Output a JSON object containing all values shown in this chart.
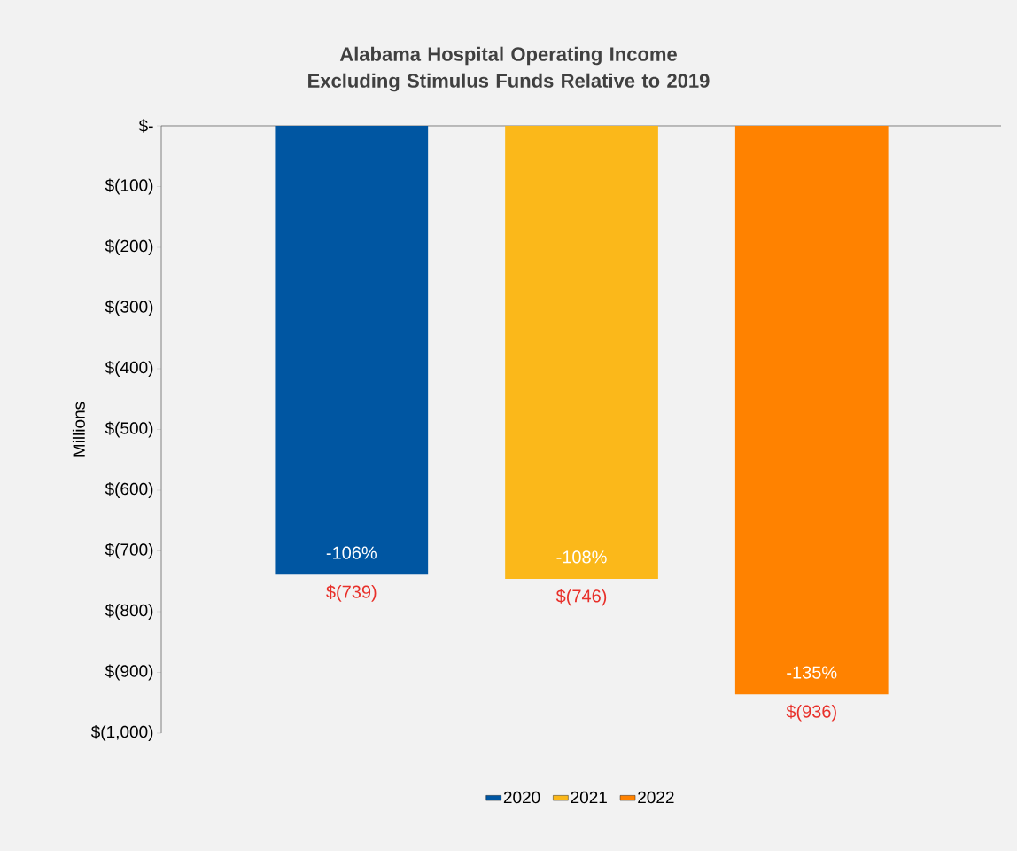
{
  "chart_data": {
    "type": "bar",
    "title": "Alabama Hospital Operating Income Excluding Stimulus Funds Relative to 2019",
    "ylabel": "Millions",
    "categories": [
      null,
      null,
      null
    ],
    "series": [
      {
        "name": "2020",
        "color": "#0056a2",
        "values": [
          -739,
          null,
          null
        ],
        "value_labels": [
          "$(739)",
          null,
          null
        ]
      },
      {
        "name": "2021",
        "color": "#fbb81a",
        "values": [
          null,
          -746,
          null
        ],
        "value_labels": [
          null,
          "$(746)",
          null
        ]
      },
      {
        "name": "2022",
        "color": "#ff8200",
        "values": [
          null,
          null,
          -936
        ],
        "value_labels": [
          null,
          null,
          "$(936)"
        ]
      }
    ],
    "annotations": [
      "-106%",
      "-108%",
      "-135%"
    ],
    "ylim": [
      -1000,
      0
    ],
    "yticks": [
      {
        "value": -1000,
        "label": "$(1,000)"
      },
      {
        "value": -900,
        "label": "$(900)"
      },
      {
        "value": -800,
        "label": "$(800)"
      },
      {
        "value": -700,
        "label": "$(700)"
      },
      {
        "value": -600,
        "label": "$(600)"
      },
      {
        "value": -500,
        "label": "$(500)"
      },
      {
        "value": -400,
        "label": "$(400)"
      },
      {
        "value": -300,
        "label": "$(300)"
      },
      {
        "value": -200,
        "label": "$(200)"
      },
      {
        "value": -100,
        "label": "$(100)"
      },
      {
        "value": 0,
        "label": "$-"
      }
    ],
    "legend": "bottom"
  }
}
